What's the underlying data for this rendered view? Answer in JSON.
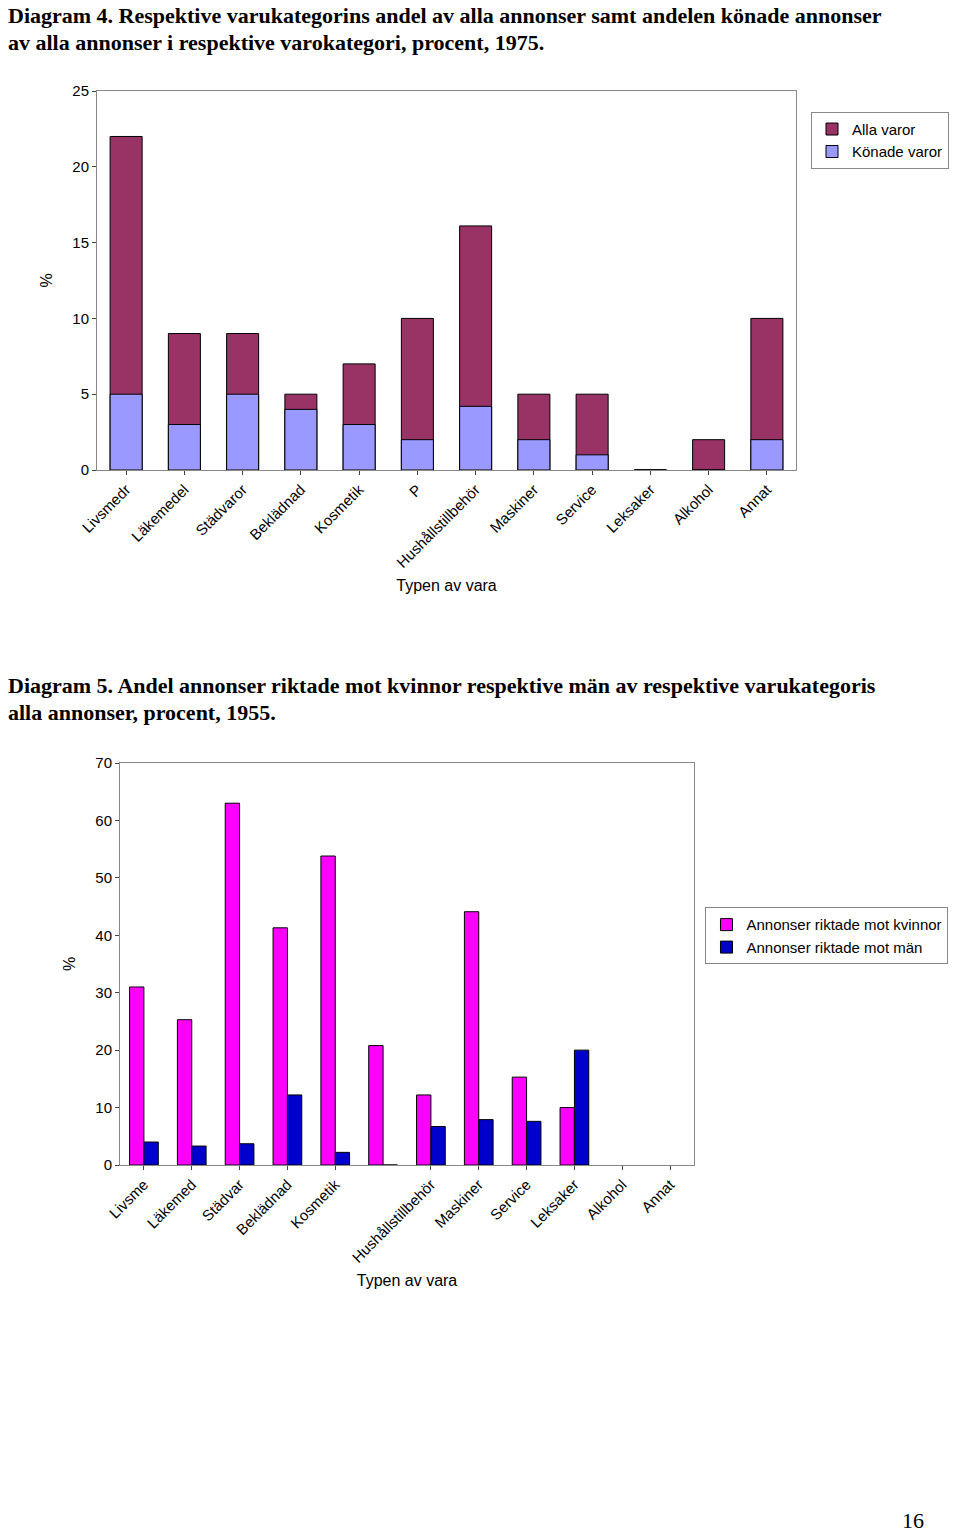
{
  "chart_data": [
    {
      "type": "bar",
      "title": "Diagram 4. Respektive varukategorins andel av alla annonser samt andelen könade annonser av alla annonser i respektive varokategori, procent, 1975.",
      "x_label": "Typen av vara",
      "y_label": "%",
      "categories": [
        "Livsmedr",
        "Läkemedel",
        "Städvaror",
        "Beklädnad",
        "Kosmetik",
        "P",
        "Hushållstillbehör",
        "Maskiner",
        "Service",
        "Leksaker",
        "Alkohol",
        "Annat"
      ],
      "series": [
        {
          "name": "Alla varor",
          "color": "#993366",
          "values": [
            22,
            9,
            9,
            5,
            7,
            10,
            16.1,
            5,
            5,
            0,
            2,
            10
          ]
        },
        {
          "name": "Könade varor",
          "color": "#9999ff",
          "values": [
            5,
            3,
            5,
            4,
            3,
            2,
            4.2,
            2,
            1,
            0,
            0,
            2
          ]
        }
      ],
      "ylim": [
        0,
        25
      ],
      "yticks": [
        0,
        5,
        10,
        15,
        20,
        25
      ],
      "grid": false,
      "legend": "right"
    },
    {
      "type": "bar",
      "title": "Diagram 5. Andel annonser riktade mot kvinnor respektive män av respektive varukategoris alla annonser, procent, 1955.",
      "x_label": "Typen av vara",
      "y_label": "%",
      "categories": [
        "Livsme",
        "Läkemed",
        "Städvar",
        "Beklädnad",
        "Kosmetik",
        null,
        "Hushållstillbehör",
        "Maskiner",
        "Service",
        "Leksaker",
        "Alkohol",
        "Annat"
      ],
      "series": [
        {
          "name": "Annonser riktade mot kvinnor",
          "color": "#ff00ff",
          "values": [
            31,
            25.3,
            63,
            41.3,
            53.8,
            20.8,
            12.2,
            44.1,
            15.3,
            10,
            null,
            null
          ]
        },
        {
          "name": "Annonser riktade mot män",
          "color": "#0000cc",
          "values": [
            4,
            3.3,
            3.7,
            12.2,
            2.2,
            0,
            6.7,
            7.9,
            7.6,
            20,
            null,
            null
          ]
        }
      ],
      "ylim": [
        0,
        70
      ],
      "yticks": [
        0,
        10,
        20,
        30,
        40,
        50,
        60,
        70
      ],
      "grid": false,
      "legend": "right"
    }
  ],
  "page_number": "16"
}
